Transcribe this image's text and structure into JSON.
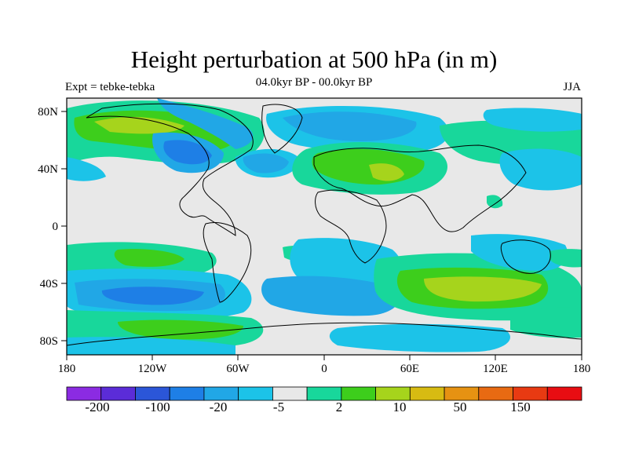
{
  "title": "Height perturbation at 500 hPa (in m)",
  "left_label": "Expt = tebke-tebka",
  "center_label": "04.0kyr BP - 00.0kyr BP",
  "right_label": "JJA",
  "map": {
    "projection": "cylindrical equidistant",
    "lon_range": [
      -180,
      180
    ],
    "lat_range": [
      -90,
      90
    ],
    "lat_tick_labels": [
      "80N",
      "40N",
      "0",
      "40S",
      "80S"
    ],
    "lon_tick_labels": [
      "180",
      "120W",
      "60W",
      "0",
      "60E",
      "120E",
      "180"
    ]
  },
  "colorbar": {
    "colors": [
      "#8b2be2",
      "#5b2cd8",
      "#2b56d8",
      "#1e7fe6",
      "#21a7e6",
      "#1cc3e8",
      "#e8e8e8",
      "#18d79b",
      "#3dce1c",
      "#a6d41c",
      "#d7bb12",
      "#e69212",
      "#e86a12",
      "#e83a12",
      "#e80d12"
    ],
    "tick_labels": [
      "-200",
      "-100",
      "-20",
      "-5",
      "2",
      "10",
      "50",
      "150"
    ]
  },
  "field_colors": {
    "neutral": "#e8e8e8",
    "neg_weak": "#1cc3e8",
    "neg_mid": "#21a7e6",
    "neg_strong": "#1e7fe6",
    "pos_weak": "#18d79b",
    "pos_mid": "#3dce1c",
    "pos_strong": "#a6d41c",
    "pos_stronger": "#d7bb12"
  }
}
